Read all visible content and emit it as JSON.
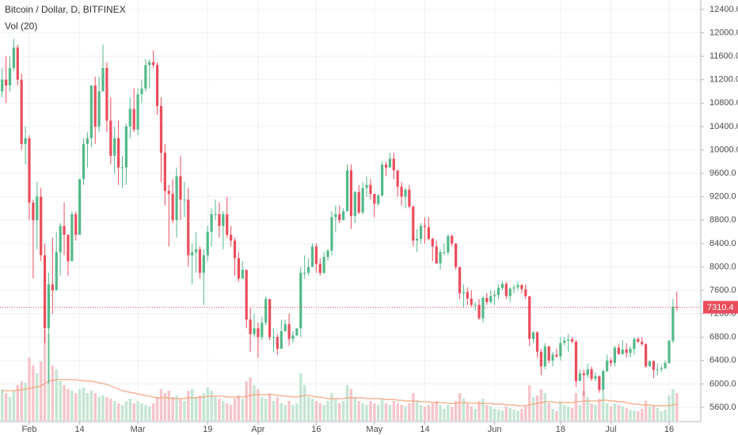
{
  "chart_data": {
    "type": "candlestick",
    "title": "Bitcoin / Dollar, D, BITFINEX",
    "subtitle": "Vol (20)",
    "x": [
      "Jan 25",
      "Jan 26",
      "Jan 27",
      "Jan 28",
      "Jan 29",
      "Jan 30",
      "Jan 31",
      "Feb 1",
      "Feb 2",
      "Feb 3",
      "Feb 4",
      "Feb 5",
      "Feb 6",
      "Feb 7",
      "Feb 8",
      "Feb 9",
      "Feb 10",
      "Feb 11",
      "Feb 12",
      "Feb 13",
      "Feb 14",
      "Feb 15",
      "Feb 16",
      "Feb 17",
      "Feb 18",
      "Feb 19",
      "Feb 20",
      "Feb 21",
      "Feb 22",
      "Feb 23",
      "Feb 24",
      "Feb 25",
      "Feb 26",
      "Feb 27",
      "Feb 28",
      "Mar 1",
      "Mar 2",
      "Mar 3",
      "Mar 4",
      "Mar 5",
      "Mar 6",
      "Mar 7",
      "Mar 8",
      "Mar 9",
      "Mar 10",
      "Mar 11",
      "Mar 12",
      "Mar 13",
      "Mar 14",
      "Mar 15",
      "Mar 16",
      "Mar 17",
      "Mar 18",
      "Mar 19",
      "Mar 20",
      "Mar 21",
      "Mar 22",
      "Mar 23",
      "Mar 24",
      "Mar 25",
      "Mar 26",
      "Mar 27",
      "Mar 28",
      "Mar 29",
      "Mar 30",
      "Mar 31",
      "Apr 1",
      "Apr 2",
      "Apr 3",
      "Apr 4",
      "Apr 5",
      "Apr 6",
      "Apr 7",
      "Apr 8",
      "Apr 9",
      "Apr 10",
      "Apr 11",
      "Apr 12",
      "Apr 13",
      "Apr 14",
      "Apr 15",
      "Apr 16",
      "Apr 17",
      "Apr 18",
      "Apr 19",
      "Apr 20",
      "Apr 21",
      "Apr 22",
      "Apr 23",
      "Apr 24",
      "Apr 25",
      "Apr 26",
      "Apr 27",
      "Apr 28",
      "Apr 29",
      "Apr 30",
      "May 1",
      "May 2",
      "May 3",
      "May 4",
      "May 5",
      "May 6",
      "May 7",
      "May 8",
      "May 9",
      "May 10",
      "May 11",
      "May 12",
      "May 13",
      "May 14",
      "May 15",
      "May 16",
      "May 17",
      "May 18",
      "May 19",
      "May 20",
      "May 21",
      "May 22",
      "May 23",
      "May 24",
      "May 25",
      "May 26",
      "May 27",
      "May 28",
      "May 29",
      "May 30",
      "May 31",
      "Jun 1",
      "Jun 2",
      "Jun 3",
      "Jun 4",
      "Jun 5",
      "Jun 6",
      "Jun 7",
      "Jun 8",
      "Jun 9",
      "Jun 10",
      "Jun 11",
      "Jun 12",
      "Jun 13",
      "Jun 14",
      "Jun 15",
      "Jun 16",
      "Jun 17",
      "Jun 18",
      "Jun 19",
      "Jun 20",
      "Jun 21",
      "Jun 22",
      "Jun 23",
      "Jun 24",
      "Jun 25",
      "Jun 26",
      "Jun 27",
      "Jun 28",
      "Jun 29",
      "Jun 30",
      "Jul 1",
      "Jul 2",
      "Jul 3",
      "Jul 4",
      "Jul 5",
      "Jul 6",
      "Jul 7",
      "Jul 8",
      "Jul 9",
      "Jul 10",
      "Jul 11",
      "Jul 12",
      "Jul 13",
      "Jul 14",
      "Jul 15",
      "Jul 16",
      "Jul 17",
      "Jul 18"
    ],
    "open": [
      11000,
      11200,
      11100,
      11400,
      11750,
      11200,
      10100,
      10200,
      9100,
      8800,
      9200,
      8200,
      6950,
      7700,
      7600,
      8250,
      8700,
      8550,
      8100,
      8900,
      8550,
      9500,
      10100,
      10200,
      11100,
      10400,
      11000,
      11400,
      10500,
      9900,
      10200,
      9700,
      9700,
      10400,
      10700,
      10350,
      10950,
      11050,
      11450,
      11500,
      11450,
      10750,
      9950,
      9300,
      9250,
      8800,
      9550,
      9150,
      9150,
      8200,
      8250,
      8300,
      7900,
      8200,
      8600,
      8900,
      8900,
      8700,
      8900,
      8550,
      8450,
      8150,
      7800,
      7950,
      7100,
      6850,
      6950,
      6800,
      7050,
      7450,
      6800,
      6800,
      6600,
      6900,
      7020,
      6770,
      6830,
      6950,
      7900,
      7900,
      8000,
      8350,
      8050,
      7900,
      8170,
      8280,
      8850,
      8900,
      8800,
      8950,
      9650,
      8870,
      9280,
      8930,
      9350,
      9400,
      9250,
      9080,
      9220,
      9750,
      9700,
      9850,
      9650,
      9370,
      9200,
      9320,
      9030,
      8450,
      8480,
      8700,
      8680,
      8480,
      8350,
      8060,
      8250,
      8250,
      8530,
      8400,
      8000,
      7550,
      7570,
      7460,
      7350,
      7350,
      7120,
      7470,
      7400,
      7500,
      7520,
      7640,
      7710,
      7500,
      7630,
      7650,
      7690,
      7620,
      7500,
      6770,
      6880,
      6550,
      6300,
      6640,
      6400,
      6500,
      6470,
      6700,
      6740,
      6760,
      6720,
      6050,
      6180,
      6150,
      6250,
      6090,
      6130,
      5900,
      6220,
      6400,
      6360,
      6620,
      6510,
      6590,
      6530,
      6600,
      6770,
      6720,
      6680,
      6300,
      6390,
      6240,
      6250,
      6270,
      6360,
      6740,
      7320
    ],
    "high": [
      11400,
      11600,
      11600,
      11900,
      11800,
      11300,
      10400,
      10250,
      9150,
      9450,
      9350,
      8400,
      7900,
      8500,
      8600,
      8750,
      9100,
      8550,
      8950,
      8950,
      9500,
      10200,
      10300,
      11100,
      11250,
      11250,
      11800,
      11500,
      10900,
      10400,
      10500,
      9900,
      10450,
      10900,
      11050,
      11050,
      11200,
      11550,
      11550,
      11700,
      11500,
      10900,
      10100,
      9400,
      9500,
      9700,
      9900,
      9450,
      9350,
      8400,
      8600,
      8350,
      8300,
      8700,
      9000,
      9150,
      9100,
      8950,
      9200,
      8700,
      8500,
      8250,
      8100,
      7950,
      7300,
      7200,
      7050,
      7150,
      7500,
      7450,
      6950,
      6850,
      7100,
      7100,
      7200,
      6900,
      6950,
      8000,
      8200,
      8150,
      8400,
      8400,
      8150,
      8250,
      8300,
      8950,
      9050,
      9050,
      9000,
      9750,
      9750,
      9300,
      9400,
      9450,
      9550,
      9500,
      9250,
      9250,
      9800,
      9800,
      9950,
      9950,
      9650,
      9450,
      9350,
      9400,
      9050,
      8650,
      8750,
      8850,
      8850,
      8500,
      8450,
      8300,
      8400,
      8550,
      8550,
      8400,
      8000,
      7700,
      7650,
      7600,
      7400,
      7450,
      7500,
      7550,
      7600,
      7600,
      7700,
      7750,
      7750,
      7650,
      7700,
      7750,
      7700,
      7700,
      7500,
      6900,
      6900,
      6600,
      6700,
      6650,
      6550,
      6600,
      6800,
      6800,
      6850,
      6800,
      6750,
      6250,
      6250,
      6350,
      6300,
      6200,
      6150,
      6250,
      6500,
      6450,
      6650,
      6680,
      6750,
      6700,
      6650,
      6800,
      6800,
      6800,
      6700,
      6400,
      6400,
      6350,
      6320,
      6400,
      6750,
      7450,
      7580
    ],
    "low": [
      10900,
      10800,
      11000,
      11350,
      11100,
      10000,
      9750,
      8800,
      7800,
      8300,
      8100,
      6700,
      6000,
      7200,
      7600,
      7850,
      8200,
      7850,
      8100,
      8450,
      8550,
      9400,
      9700,
      10050,
      10100,
      10300,
      11000,
      10300,
      9750,
      9600,
      9400,
      9350,
      9400,
      10200,
      10300,
      10250,
      10800,
      11000,
      11050,
      11400,
      10600,
      9450,
      9050,
      8350,
      8750,
      8500,
      8800,
      8850,
      8000,
      7700,
      7900,
      7800,
      7350,
      8100,
      8350,
      8800,
      8500,
      8300,
      8500,
      8350,
      7850,
      7750,
      7800,
      6950,
      6550,
      6800,
      6450,
      6750,
      7000,
      6750,
      6550,
      6500,
      6600,
      6900,
      6650,
      6700,
      6820,
      6800,
      7800,
      7850,
      8000,
      7900,
      7850,
      7880,
      8100,
      8200,
      8600,
      8750,
      8800,
      8950,
      8650,
      8750,
      8900,
      8900,
      9200,
      9150,
      8850,
      9050,
      9200,
      9550,
      9700,
      9500,
      9200,
      9050,
      9000,
      9000,
      8350,
      8250,
      8400,
      8400,
      8450,
      8100,
      8050,
      7950,
      8200,
      8200,
      8350,
      7950,
      7450,
      7300,
      7350,
      7320,
      7250,
      7100,
      7050,
      7350,
      7380,
      7350,
      7450,
      7600,
      7450,
      7400,
      7550,
      7600,
      7550,
      7450,
      6650,
      6700,
      6450,
      6150,
      6250,
      6350,
      6300,
      6450,
      6400,
      6650,
      6550,
      6700,
      5950,
      6050,
      5800,
      6100,
      6050,
      6050,
      5850,
      5800,
      6200,
      6300,
      6300,
      6500,
      6500,
      6450,
      6450,
      6500,
      6700,
      6650,
      6280,
      6300,
      6100,
      6150,
      6200,
      6250,
      6350,
      6700,
      7250
    ],
    "close": [
      11200,
      11100,
      11400,
      11750,
      11200,
      10100,
      10200,
      9100,
      8800,
      9200,
      8200,
      6950,
      7700,
      7600,
      8250,
      8700,
      8550,
      8100,
      8900,
      8550,
      9500,
      10100,
      10200,
      11100,
      10400,
      11000,
      11400,
      10500,
      9900,
      10200,
      9700,
      9700,
      10400,
      10700,
      10350,
      10950,
      11050,
      11450,
      11500,
      11450,
      10750,
      9950,
      9300,
      9250,
      8800,
      9550,
      9150,
      9150,
      8200,
      8250,
      8300,
      7900,
      8200,
      8600,
      8900,
      8900,
      8700,
      8900,
      8550,
      8450,
      8150,
      7800,
      7950,
      7100,
      6850,
      6950,
      6800,
      7050,
      7450,
      6800,
      6800,
      6600,
      6900,
      7020,
      6770,
      6830,
      6950,
      7900,
      7900,
      8000,
      8350,
      8050,
      7900,
      8170,
      8280,
      8850,
      8900,
      8800,
      8950,
      9650,
      8870,
      9280,
      8930,
      9350,
      9400,
      9250,
      9080,
      9220,
      9750,
      9700,
      9850,
      9650,
      9370,
      9200,
      9320,
      9030,
      8450,
      8480,
      8700,
      8680,
      8480,
      8350,
      8060,
      8250,
      8250,
      8530,
      8400,
      8000,
      7550,
      7570,
      7460,
      7350,
      7350,
      7120,
      7470,
      7400,
      7500,
      7520,
      7640,
      7710,
      7500,
      7630,
      7650,
      7690,
      7620,
      7500,
      6770,
      6880,
      6550,
      6300,
      6640,
      6400,
      6500,
      6470,
      6700,
      6740,
      6760,
      6720,
      6050,
      6180,
      6150,
      6250,
      6090,
      6130,
      5900,
      6220,
      6400,
      6360,
      6620,
      6510,
      6590,
      6530,
      6600,
      6770,
      6720,
      6680,
      6300,
      6390,
      6240,
      6250,
      6270,
      6360,
      6740,
      7320,
      7310.4
    ],
    "volume": [
      40,
      35,
      30,
      38,
      45,
      50,
      48,
      80,
      70,
      60,
      75,
      115,
      110,
      70,
      65,
      50,
      45,
      40,
      38,
      35,
      40,
      42,
      35,
      38,
      35,
      30,
      32,
      30,
      28,
      25,
      22,
      20,
      25,
      28,
      22,
      25,
      22,
      20,
      18,
      22,
      30,
      40,
      35,
      38,
      30,
      32,
      28,
      25,
      38,
      40,
      30,
      32,
      35,
      42,
      38,
      30,
      28,
      25,
      22,
      20,
      28,
      32,
      28,
      50,
      55,
      45,
      40,
      30,
      28,
      35,
      25,
      30,
      22,
      20,
      25,
      20,
      22,
      60,
      45,
      30,
      28,
      25,
      22,
      20,
      25,
      35,
      28,
      22,
      25,
      45,
      40,
      30,
      25,
      22,
      20,
      25,
      22,
      20,
      28,
      22,
      20,
      25,
      22,
      20,
      18,
      22,
      35,
      25,
      20,
      18,
      20,
      22,
      25,
      20,
      15,
      20,
      18,
      25,
      35,
      28,
      22,
      18,
      15,
      25,
      28,
      20,
      18,
      15,
      14,
      13,
      18,
      16,
      14,
      13,
      15,
      18,
      45,
      30,
      32,
      40,
      35,
      22,
      15,
      12,
      25,
      20,
      18,
      16,
      35,
      20,
      38,
      30,
      22,
      20,
      28,
      32,
      22,
      18,
      22,
      20,
      18,
      16,
      14,
      13,
      12,
      15,
      25,
      18,
      20,
      16,
      12,
      14,
      32,
      40,
      35
    ],
    "vol_ma": [
      38,
      38,
      38,
      38,
      39,
      39,
      40,
      41,
      42,
      43,
      44,
      47,
      50,
      51,
      52,
      52,
      52,
      52,
      52,
      52,
      51,
      51,
      50,
      50,
      49,
      48,
      47,
      46,
      44,
      42,
      40,
      38,
      37,
      36,
      35,
      34,
      33,
      32,
      31,
      30,
      29,
      29,
      29,
      29,
      28,
      28,
      28,
      28,
      29,
      29,
      29,
      30,
      30,
      31,
      31,
      31,
      31,
      31,
      30,
      30,
      30,
      30,
      30,
      31,
      32,
      33,
      33,
      33,
      33,
      33,
      33,
      32,
      32,
      31,
      31,
      30,
      30,
      31,
      32,
      32,
      31,
      30,
      30,
      29,
      28,
      28,
      28,
      28,
      28,
      29,
      29,
      29,
      29,
      29,
      28,
      28,
      28,
      28,
      28,
      27,
      27,
      27,
      26,
      26,
      25,
      25,
      25,
      25,
      24,
      24,
      24,
      23,
      23,
      23,
      23,
      22,
      22,
      22,
      23,
      23,
      23,
      22,
      22,
      22,
      22,
      22,
      22,
      21,
      21,
      21,
      20,
      20,
      20,
      19,
      19,
      19,
      20,
      21,
      22,
      23,
      24,
      24,
      24,
      23,
      23,
      23,
      23,
      23,
      24,
      24,
      25,
      25,
      25,
      25,
      25,
      26,
      26,
      25,
      25,
      24,
      24,
      23,
      22,
      21,
      21,
      20,
      20,
      20,
      19,
      19,
      19,
      19,
      19,
      20,
      21
    ],
    "up_color": "#53b987",
    "down_color": "#eb4d5c",
    "volume_up_color": "#c4e6d3",
    "volume_down_color": "#f6c5ca",
    "vol_ma_color": "#f3a67f",
    "ylim": [
      5127,
      12562
    ],
    "yticks": [
      {
        "value": 5600,
        "label": "5600.0"
      },
      {
        "value": 6000,
        "label": "6000.0"
      },
      {
        "value": 6400,
        "label": "6400.0"
      },
      {
        "value": 6800,
        "label": "6800.0"
      },
      {
        "value": 7200,
        "label": "7200.0"
      },
      {
        "value": 7600,
        "label": "7600.0"
      },
      {
        "value": 8000,
        "label": "8000.0"
      },
      {
        "value": 8400,
        "label": "8400.0"
      },
      {
        "value": 8800,
        "label": "8800.0"
      },
      {
        "value": 9200,
        "label": "9200.0"
      },
      {
        "value": 9600,
        "label": "9600.0"
      },
      {
        "value": 10000,
        "label": "10000.0"
      },
      {
        "value": 10400,
        "label": "10400.0"
      },
      {
        "value": 10800,
        "label": "10800.0"
      },
      {
        "value": 11200,
        "label": "11200.0"
      },
      {
        "value": 11600,
        "label": "11600.0"
      },
      {
        "value": 12000,
        "label": "12000.0"
      },
      {
        "value": 12400,
        "label": "12400.0"
      }
    ],
    "xticks": [
      {
        "value": "Feb 1",
        "label": "Feb"
      },
      {
        "value": "Feb 14",
        "label": "14"
      },
      {
        "value": "Mar 1",
        "label": "Mar"
      },
      {
        "value": "Mar 19",
        "label": "19"
      },
      {
        "value": "Apr 1",
        "label": "Apr"
      },
      {
        "value": "Apr 16",
        "label": "16"
      },
      {
        "value": "May 1",
        "label": "May"
      },
      {
        "value": "May 14",
        "label": "14"
      },
      {
        "value": "Jun 1",
        "label": "Jun"
      },
      {
        "value": "Jun 18",
        "label": "18"
      },
      {
        "value": "Jul 1",
        "label": "Jul"
      },
      {
        "value": "Jul 16",
        "label": "16"
      }
    ],
    "grid": true
  }
}
